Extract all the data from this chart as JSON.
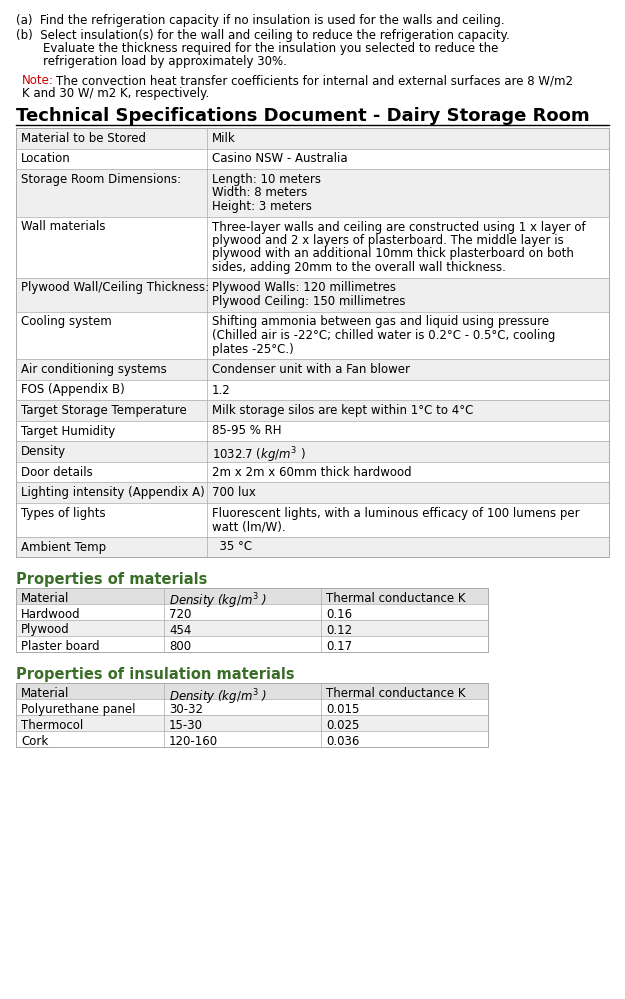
{
  "bg_color": "#ffffff",
  "text_color": "#000000",
  "header_color": "#3a6e28",
  "note_color": "#cc0000",
  "table_header_bg": "#e0e0e0",
  "table_row_odd_bg": "#efefef",
  "table_row_even_bg": "#ffffff",
  "table_border_color": "#aaaaaa",
  "main_title": "Technical Specifications Document - Dairy Storage Room",
  "main_table": [
    [
      "Material to be Stored",
      "Milk"
    ],
    [
      "Location",
      "Casino NSW - Australia"
    ],
    [
      "Storage Room Dimensions:",
      "Length: 10 meters\nWidth: 8 meters\nHeight: 3 meters"
    ],
    [
      "Wall materials",
      "Three-layer walls and ceiling are constructed using 1 x layer of\nplywood and 2 x layers of plasterboard. The middle layer is\nplywood with an additional 10mm thick plasterboard on both\nsides, adding 20mm to the overall wall thickness."
    ],
    [
      "Plywood Wall/Ceiling Thickness:",
      "Plywood Walls: 120 millimetres\nPlywood Ceiling: 150 millimetres"
    ],
    [
      "Cooling system",
      "Shifting ammonia between gas and liquid using pressure\n(Chilled air is -22°C; chilled water is 0.2°C - 0.5°C, cooling\nplates -25°C.)"
    ],
    [
      "Air conditioning systems",
      "Condenser unit with a Fan blower"
    ],
    [
      "FOS (Appendix B)",
      "1.2"
    ],
    [
      "Target Storage Temperature",
      "Milk storage silos are kept within 1°C to 4°C"
    ],
    [
      "Target Humidity",
      "85-95 % RH"
    ],
    [
      "Density",
      "1032.7 ($kg/m^3$ )"
    ],
    [
      "Door details",
      "2m x 2m x 60mm thick hardwood"
    ],
    [
      "Lighting intensity (Appendix A)",
      "700 lux"
    ],
    [
      "Types of lights",
      "Fluorescent lights, with a luminous efficacy of 100 lumens per\nwatt (lm/W)."
    ],
    [
      "Ambient Temp",
      "  35 °C"
    ]
  ],
  "mat_title": "Properties of materials",
  "mat_headers": [
    "Material",
    "Density ($kg/m^3$ )",
    "Thermal conductance K"
  ],
  "mat_rows": [
    [
      "Hardwood",
      "720",
      "0.16"
    ],
    [
      "Plywood",
      "454",
      "0.12"
    ],
    [
      "Plaster board",
      "800",
      "0.17"
    ]
  ],
  "ins_title": "Properties of insulation materials",
  "ins_headers": [
    "Material",
    "Density ($kg/m^3$ )",
    "Thermal conductance K"
  ],
  "ins_rows": [
    [
      "Polyurethane panel",
      "30-32",
      "0.015"
    ],
    [
      "Thermocol",
      "15-30",
      "0.025"
    ],
    [
      "Cork",
      "120-160",
      "0.036"
    ]
  ]
}
